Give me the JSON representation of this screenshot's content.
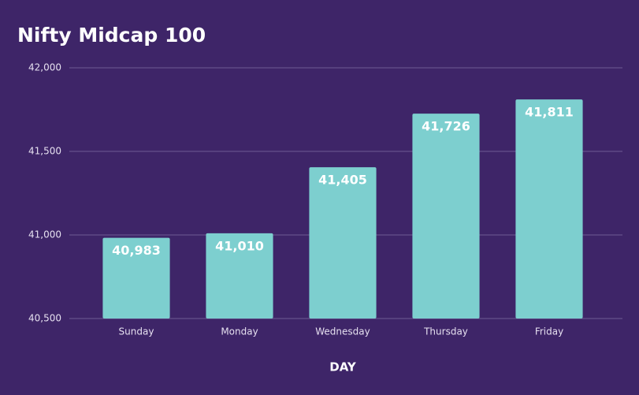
{
  "chart_data": {
    "type": "bar",
    "title": "Nifty Midcap 100",
    "x_label": "DAY",
    "categories": [
      "Sunday",
      "Monday",
      "Wednesday",
      "Thursday",
      "Friday"
    ],
    "values": [
      40983,
      41010,
      41405,
      41726,
      41811
    ],
    "value_labels": [
      "40,983",
      "41,010",
      "41,405",
      "41,726",
      "41,811"
    ],
    "color": "#7dcfcf",
    "ylim": [
      40500,
      42000
    ],
    "yticks": [
      {
        "value": 40500,
        "label": "40,500"
      },
      {
        "value": 41000,
        "label": "41,000"
      },
      {
        "value": 41500,
        "label": "41,500"
      },
      {
        "value": 42000,
        "label": "42,000"
      }
    ],
    "grid": true
  }
}
